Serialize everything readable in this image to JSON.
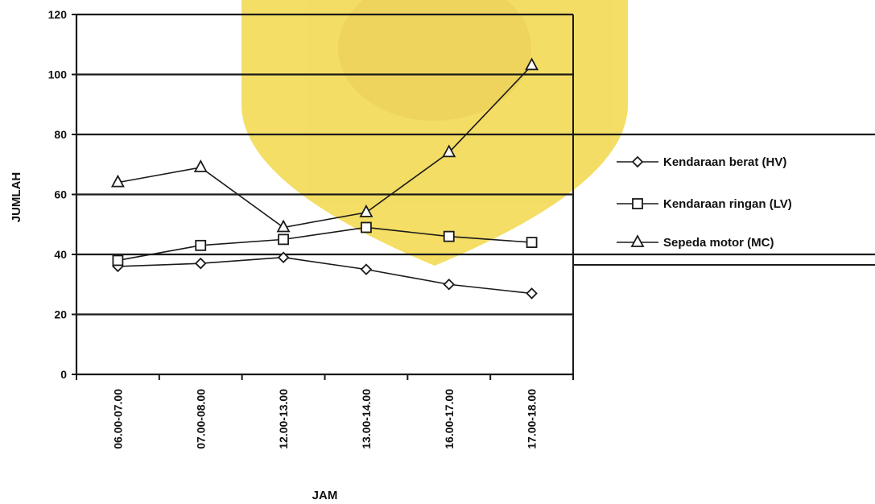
{
  "chart_data": {
    "type": "line",
    "xlabel": "JAM",
    "ylabel": "JUMLAH",
    "ylim": [
      0,
      120
    ],
    "yticks": [
      0,
      20,
      40,
      60,
      80,
      100,
      120
    ],
    "grid": true,
    "legend_position": "right",
    "categories": [
      "06.00-07.00",
      "07.00-08.00",
      "12.00-13.00",
      "13.00-14.00",
      "16.00-17.00",
      "17.00-18.00"
    ],
    "series": [
      {
        "name": "Kendaraan berat (HV)",
        "marker": "diamond",
        "values": [
          36,
          37,
          39,
          35,
          30,
          27
        ]
      },
      {
        "name": "Kendaraan ringan (LV)",
        "marker": "square",
        "values": [
          38,
          43,
          45,
          49,
          46,
          44
        ]
      },
      {
        "name": "Sepeda motor (MC)",
        "marker": "triangle",
        "values": [
          64,
          69,
          49,
          54,
          74,
          103
        ]
      }
    ]
  },
  "colors": {
    "background": "#ffffff",
    "watermark": "#f2d84a",
    "line": "#1a1a1a",
    "grid": "#1a1a1a"
  }
}
